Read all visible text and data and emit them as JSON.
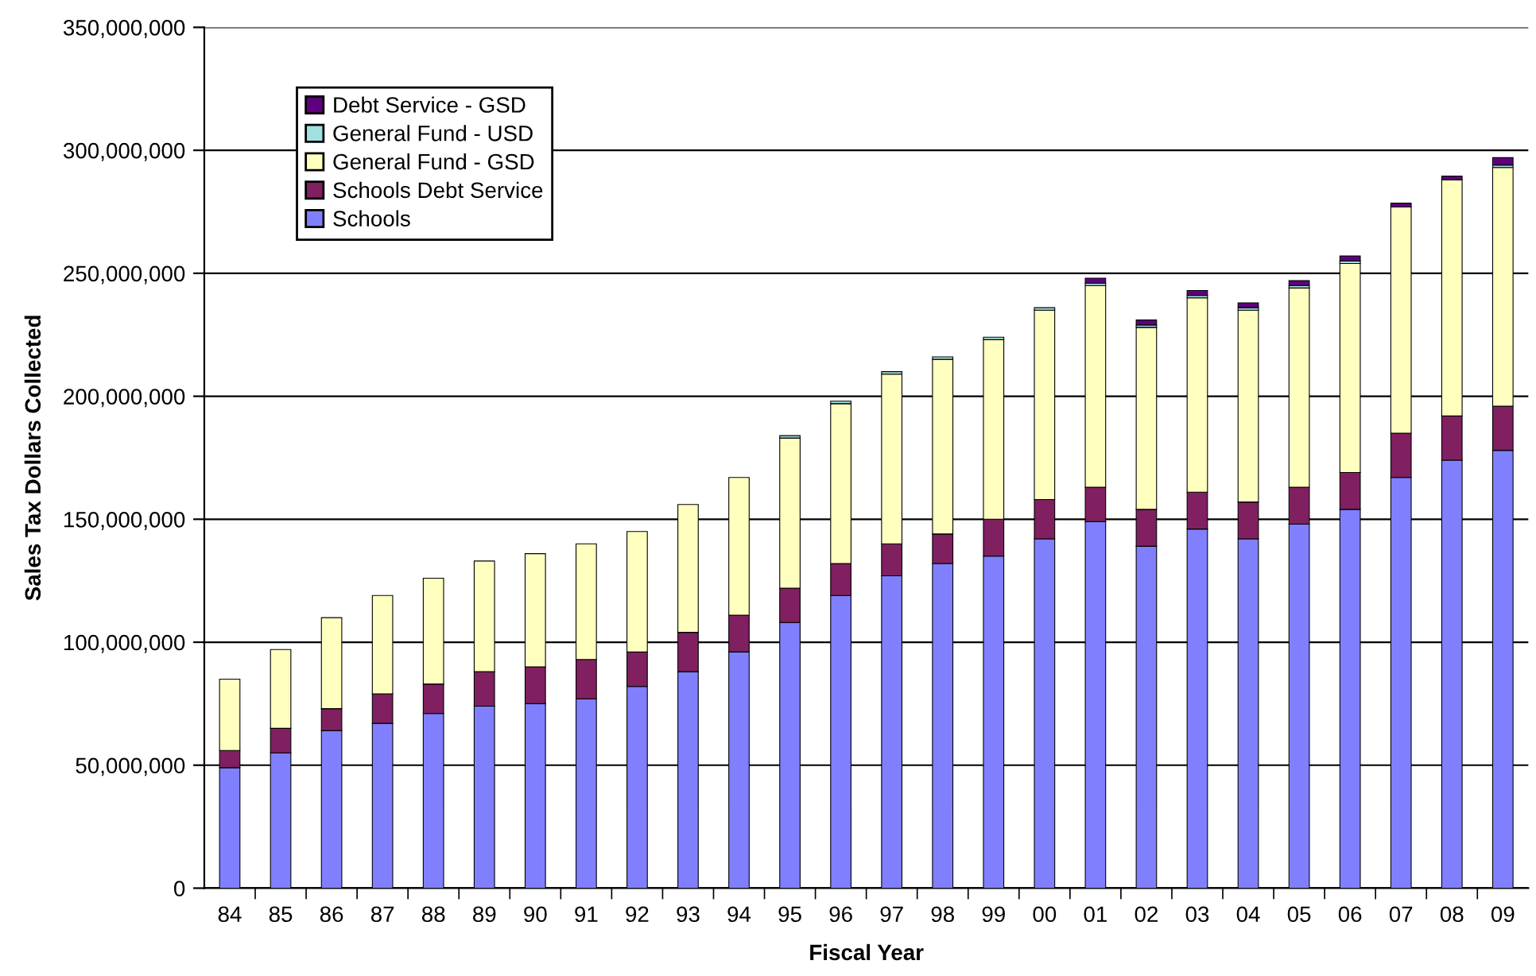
{
  "chart_data": {
    "type": "bar",
    "stacked": true,
    "xlabel": "Fiscal Year",
    "ylabel": "Sales Tax Dollars Collected",
    "categories": [
      "84",
      "85",
      "86",
      "87",
      "88",
      "89",
      "90",
      "91",
      "92",
      "93",
      "94",
      "95",
      "96",
      "97",
      "98",
      "99",
      "00",
      "01",
      "02",
      "03",
      "04",
      "05",
      "06",
      "07",
      "08",
      "09"
    ],
    "series": [
      {
        "name": "Schools",
        "color": "#8080ff",
        "values": [
          49000000,
          55000000,
          64000000,
          67000000,
          71000000,
          74000000,
          75000000,
          77000000,
          82000000,
          88000000,
          96000000,
          108000000,
          119000000,
          127000000,
          132000000,
          135000000,
          142000000,
          149000000,
          139000000,
          146000000,
          142000000,
          148000000,
          154000000,
          167000000,
          174000000,
          178000000
        ]
      },
      {
        "name": "Schools Debt Service",
        "color": "#802060",
        "values": [
          7000000,
          10000000,
          9000000,
          12000000,
          12000000,
          14000000,
          15000000,
          16000000,
          14000000,
          16000000,
          15000000,
          14000000,
          13000000,
          13000000,
          12000000,
          15000000,
          16000000,
          14000000,
          15000000,
          15000000,
          15000000,
          15000000,
          15000000,
          18000000,
          18000000,
          18000000
        ]
      },
      {
        "name": "General Fund - GSD",
        "color": "#ffffc0",
        "values": [
          29000000,
          32000000,
          37000000,
          40000000,
          43000000,
          45000000,
          46000000,
          47000000,
          49000000,
          52000000,
          56000000,
          61000000,
          65000000,
          69000000,
          71000000,
          73000000,
          77000000,
          82000000,
          74000000,
          79000000,
          78000000,
          81000000,
          85000000,
          92000000,
          96000000,
          97000000
        ]
      },
      {
        "name": "General Fund - USD",
        "color": "#a0e0e0",
        "values": [
          null,
          null,
          null,
          null,
          null,
          null,
          null,
          null,
          null,
          null,
          null,
          1000000,
          1000000,
          1000000,
          1000000,
          1000000,
          1000000,
          1000000,
          1000000,
          1000000,
          1000000,
          1000000,
          1000000,
          null,
          null,
          1000000
        ]
      },
      {
        "name": "Debt Service - GSD",
        "color": "#600080",
        "values": [
          null,
          null,
          null,
          null,
          null,
          null,
          null,
          null,
          null,
          null,
          null,
          null,
          null,
          null,
          null,
          null,
          null,
          2000000,
          2000000,
          2000000,
          2000000,
          2000000,
          2000000,
          1500000,
          1500000,
          3000000
        ]
      }
    ],
    "ylim": [
      0,
      350000000
    ],
    "yticks": [
      {
        "value": 0,
        "label": "0"
      },
      {
        "value": 50000000,
        "label": "50,000,000"
      },
      {
        "value": 100000000,
        "label": "100,000,000"
      },
      {
        "value": 150000000,
        "label": "150,000,000"
      },
      {
        "value": 200000000,
        "label": "200,000,000"
      },
      {
        "value": 250000000,
        "label": "250,000,000"
      },
      {
        "value": 300000000,
        "label": "300,000,000"
      },
      {
        "value": 350000000,
        "label": "350,000,000"
      }
    ],
    "grid": "y",
    "legend": "top left"
  }
}
